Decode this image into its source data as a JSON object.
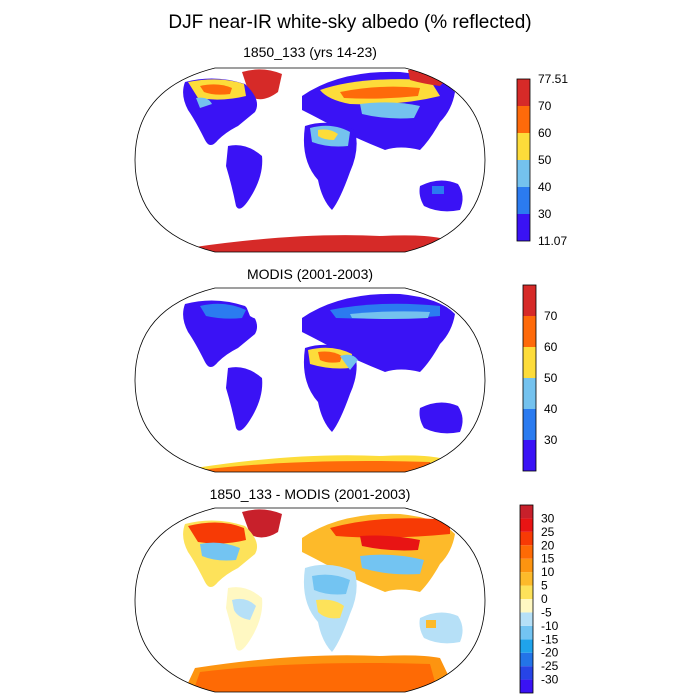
{
  "title": "DJF near-IR white-sky albedo (% reflected)",
  "panels": [
    {
      "title": "1850_133 (yrs 14-23)",
      "colorbar": {
        "colors": [
          "#3a12f5",
          "#2b7bf0",
          "#74c2ee",
          "#fddc3a",
          "#fe6a0a",
          "#d62a28"
        ],
        "labels": [
          "11.07",
          "30",
          "40",
          "50",
          "60",
          "70",
          "77.51"
        ]
      }
    },
    {
      "title": "MODIS (2001-2003)",
      "colorbar": {
        "colors": [
          "#3a12f5",
          "#2b7bf0",
          "#74c2ee",
          "#fddc3a",
          "#fe6a0a",
          "#d62a28"
        ],
        "labels": [
          "30",
          "40",
          "50",
          "60",
          "70"
        ]
      }
    },
    {
      "title": "1850_133 - MODIS (2001-2003)",
      "colorbar": {
        "colors": [
          "#3a12f5",
          "#2744e6",
          "#2374e8",
          "#1fa3ec",
          "#73c4f2",
          "#b6e0f7",
          "#fff8c2",
          "#fde25a",
          "#fdba2a",
          "#fd9410",
          "#fe6a05",
          "#f73a05",
          "#e81414",
          "#c8202b"
        ],
        "labels": [
          "-30",
          "-25",
          "-20",
          "-15",
          "-10",
          "-5",
          "0",
          "5",
          "10",
          "15",
          "20",
          "25",
          "30"
        ]
      }
    }
  ]
}
